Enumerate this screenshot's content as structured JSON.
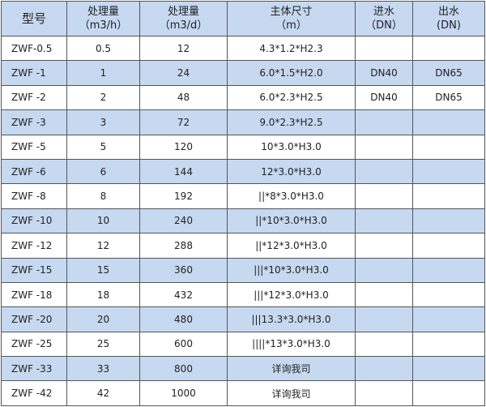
{
  "header": {
    "model": "型号",
    "flow_h": [
      "处理量",
      "（m3/h）"
    ],
    "flow_d": [
      "处理量",
      "（m3/d）"
    ],
    "size": [
      "主体尺寸",
      "（m）"
    ],
    "inlet": [
      "进水",
      "（DN）"
    ],
    "outlet": [
      "出水",
      "(DN)"
    ]
  },
  "rows": [
    {
      "model": "ZWF-0.5",
      "h": "0.5",
      "d": "12",
      "size": "4.3*1.2*H2.3",
      "in": "",
      "out": ""
    },
    {
      "model": "ZWF  -1",
      "h": "1",
      "d": "24",
      "size": "6.0*1.5*H2.0",
      "in": "DN40",
      "out": "DN65"
    },
    {
      "model": "ZWF  -2",
      "h": "2",
      "d": "48",
      "size": "6.0*2.3*H2.5",
      "in": "DN40",
      "out": "DN65"
    },
    {
      "model": "ZWF  -3",
      "h": "3",
      "d": "72",
      "size": "9.0*2.3*H2.5",
      "in": "",
      "out": ""
    },
    {
      "model": "ZWF  -5",
      "h": "5",
      "d": "120",
      "size": "10*3.0*H3.0",
      "in": "",
      "out": ""
    },
    {
      "model": "ZWF  -6",
      "h": "6",
      "d": "144",
      "size": "12*3.0*H3.0",
      "in": "",
      "out": ""
    },
    {
      "model": "ZWF  -8",
      "h": "8",
      "d": "192",
      "size": "||*8*3.0*H3.0",
      "in": "",
      "out": ""
    },
    {
      "model": "ZWF -10",
      "h": "10",
      "d": "240",
      "size": "||*10*3.0*H3.0",
      "in": "",
      "out": ""
    },
    {
      "model": "ZWF -12",
      "h": "12",
      "d": "288",
      "size": "||*12*3.0*H3.0",
      "in": "",
      "out": ""
    },
    {
      "model": "ZWF -15",
      "h": "15",
      "d": "360",
      "size": "|||*10*3.0*H3.0",
      "in": "",
      "out": ""
    },
    {
      "model": "ZWF -18",
      "h": "18",
      "d": "432",
      "size": "|||*12*3.0*H3.0",
      "in": "",
      "out": ""
    },
    {
      "model": "ZWF -20",
      "h": "20",
      "d": "480",
      "size": "|||13.3*3.0*H3.0",
      "in": "",
      "out": ""
    },
    {
      "model": "ZWF -25",
      "h": "25",
      "d": "600",
      "size": "||||*13*3.0*H3.0",
      "in": "",
      "out": ""
    },
    {
      "model": "ZWF -33",
      "h": "33",
      "d": "800",
      "size": "详询我司",
      "in": "",
      "out": ""
    },
    {
      "model": "ZWF -42",
      "h": "42",
      "d": "1000",
      "size": "详询我司",
      "in": "",
      "out": ""
    }
  ],
  "colors": {
    "header_bg": "#c6d9f1",
    "alt_row_bg": "#c6d9f1",
    "border": "#555555"
  }
}
